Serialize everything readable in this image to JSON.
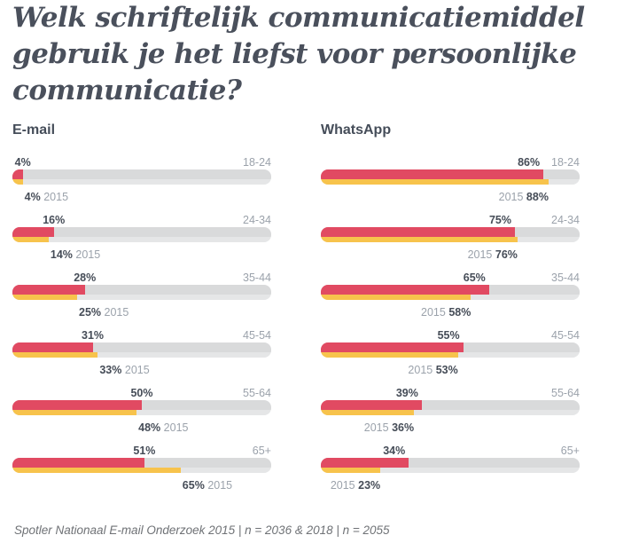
{
  "title": "Welk schriftelijk communicatiemiddel gebruik je het liefst voor persoonlijke communicatie?",
  "footer": "Spotler Nationaal E-mail Onderzoek 2015 | n = 2036 &  2018 | n = 2055",
  "legend": {
    "year_2015_label": "2015"
  },
  "colors": {
    "bar_2018": "#e14a62",
    "bar_2015": "#f7c34c",
    "track_2018": "#d9dadb",
    "track_2015": "#e5e6e7",
    "title_text": "#4a505c",
    "label_dark": "#454c57",
    "label_gray": "#9ba2ab"
  },
  "chart_data": [
    {
      "type": "bar",
      "title": "E-mail",
      "orientation": "horizontal",
      "unit": "%",
      "xlim": [
        0,
        100
      ],
      "grid": false,
      "legend_position": "inline-labels",
      "categories": [
        "18-24",
        "24-34",
        "35-44",
        "45-54",
        "55-64",
        "65+"
      ],
      "series": [
        {
          "name": "2018",
          "values": [
            4,
            16,
            28,
            31,
            50,
            51
          ]
        },
        {
          "name": "2015",
          "values": [
            4,
            14,
            25,
            33,
            48,
            65
          ]
        }
      ],
      "value_label_order": "value-first"
    },
    {
      "type": "bar",
      "title": "WhatsApp",
      "orientation": "horizontal",
      "unit": "%",
      "xlim": [
        0,
        100
      ],
      "grid": false,
      "legend_position": "inline-labels",
      "categories": [
        "18-24",
        "24-34",
        "35-44",
        "45-54",
        "55-64",
        "65+"
      ],
      "series": [
        {
          "name": "2018",
          "values": [
            86,
            75,
            65,
            55,
            39,
            34
          ]
        },
        {
          "name": "2015",
          "values": [
            88,
            76,
            58,
            53,
            36,
            23
          ]
        }
      ],
      "value_label_order": "year-first"
    }
  ]
}
